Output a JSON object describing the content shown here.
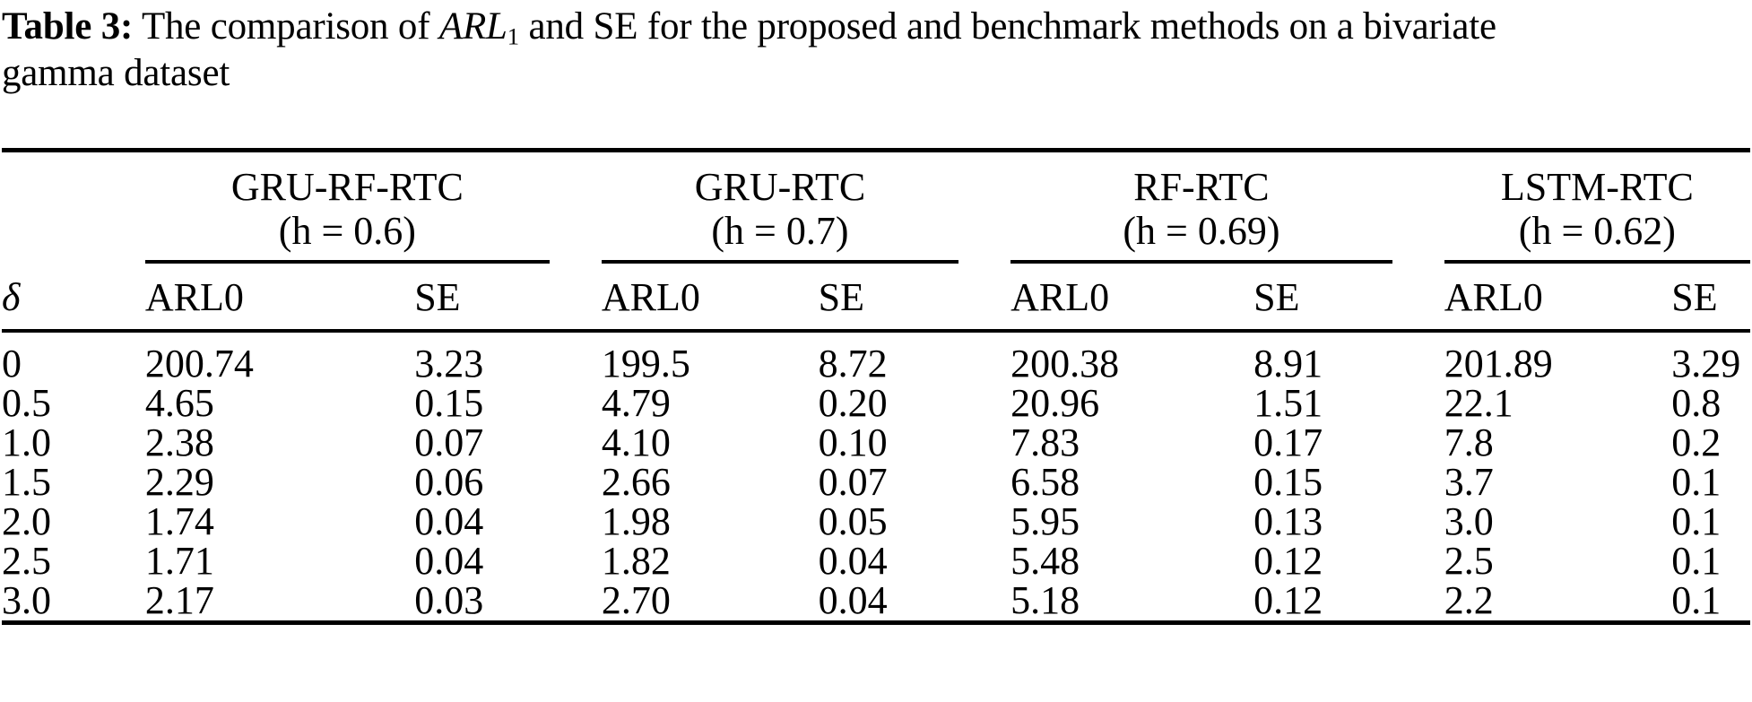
{
  "title": {
    "label": "Table 3:",
    "line1_before_math": "The comparison of",
    "math_term": "ARL",
    "math_sub": "1",
    "line1_after_math": "and SE for the proposed and benchmark methods on a bivariate",
    "line2": "gamma dataset"
  },
  "table": {
    "delta_header": "δ",
    "groups": [
      {
        "name": "GRU-RF-RTC",
        "threshold": "(h = 0.6)"
      },
      {
        "name": "GRU-RTC",
        "threshold": "(h = 0.7)"
      },
      {
        "name": "RF-RTC",
        "threshold": "(h = 0.69)"
      },
      {
        "name": "LSTM-RTC",
        "threshold": "(h = 0.62)"
      }
    ],
    "sub_headers": [
      "ARL0",
      "SE",
      "ARL0",
      "SE",
      "ARL0",
      "SE",
      "ARL0",
      "SE"
    ],
    "rows": [
      {
        "delta": "0",
        "cells": [
          "200.74",
          "3.23",
          "199.5",
          "8.72",
          "200.38",
          "8.91",
          "201.89",
          "3.29"
        ],
        "bold_cells": []
      },
      {
        "delta": "0.5",
        "cells": [
          "4.65",
          "0.15",
          "4.79",
          "0.20",
          "20.96",
          "1.51",
          "22.1",
          "0.8"
        ],
        "bold_cells": [
          0
        ]
      },
      {
        "delta": "1.0",
        "cells": [
          "2.38",
          "0.07",
          "4.10",
          "0.10",
          "7.83",
          "0.17",
          "7.8",
          "0.2"
        ],
        "bold_cells": [
          0
        ]
      },
      {
        "delta": "1.5",
        "cells": [
          "2.29",
          "0.06",
          "2.66",
          "0.07",
          "6.58",
          "0.15",
          "3.7",
          "0.1"
        ],
        "bold_cells": [
          0
        ]
      },
      {
        "delta": "2.0",
        "cells": [
          "1.74",
          "0.04",
          "1.98",
          "0.05",
          "5.95",
          "0.13",
          "3.0",
          "0.1"
        ],
        "bold_cells": [
          0
        ]
      },
      {
        "delta": "2.5",
        "cells": [
          "1.71",
          "0.04",
          "1.82",
          "0.04",
          "5.48",
          "0.12",
          "2.5",
          "0.1"
        ],
        "bold_cells": [
          0
        ]
      },
      {
        "delta": "3.0",
        "cells": [
          "2.17",
          "0.03",
          "2.70",
          "0.04",
          "5.18",
          "0.12",
          "2.2",
          "0.1"
        ],
        "bold_cells": [
          0
        ]
      }
    ]
  },
  "colors": {
    "text": "#000000",
    "background": "#ffffff",
    "rule": "#000000"
  }
}
